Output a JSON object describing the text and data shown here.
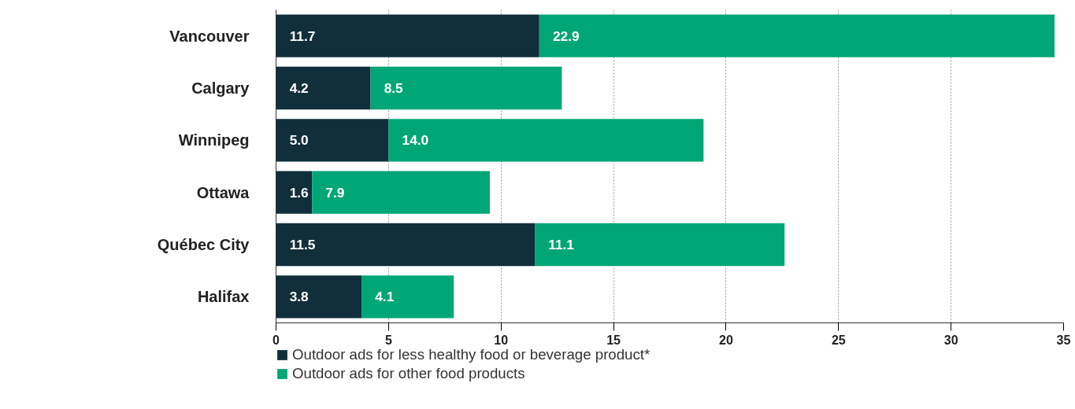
{
  "chart_data": {
    "type": "bar",
    "orientation": "horizontal",
    "stacked": true,
    "categories": [
      "Vancouver",
      "Calgary",
      "Winnipeg",
      "Ottawa",
      "Québec City",
      "Halifax"
    ],
    "series": [
      {
        "name": "Outdoor ads for less healthy food or beverage product*",
        "color": "#112f3a",
        "values": [
          11.7,
          4.2,
          5.0,
          1.6,
          11.5,
          3.8
        ],
        "value_labels": [
          "11.7",
          "4.2",
          "5.0",
          "1.6",
          "11.5",
          "3.8"
        ]
      },
      {
        "name": "Outdoor ads for other food products",
        "color": "#00a676",
        "values": [
          22.9,
          8.5,
          14.0,
          7.9,
          11.1,
          4.1
        ],
        "value_labels": [
          "22.9",
          "8.5",
          "14.0",
          "7.9",
          "11.1",
          "4.1"
        ]
      }
    ],
    "xlim": [
      0,
      35
    ],
    "xticks": [
      0,
      5,
      10,
      15,
      20,
      25,
      30,
      35
    ],
    "grid": "x",
    "legend": "bottom"
  }
}
